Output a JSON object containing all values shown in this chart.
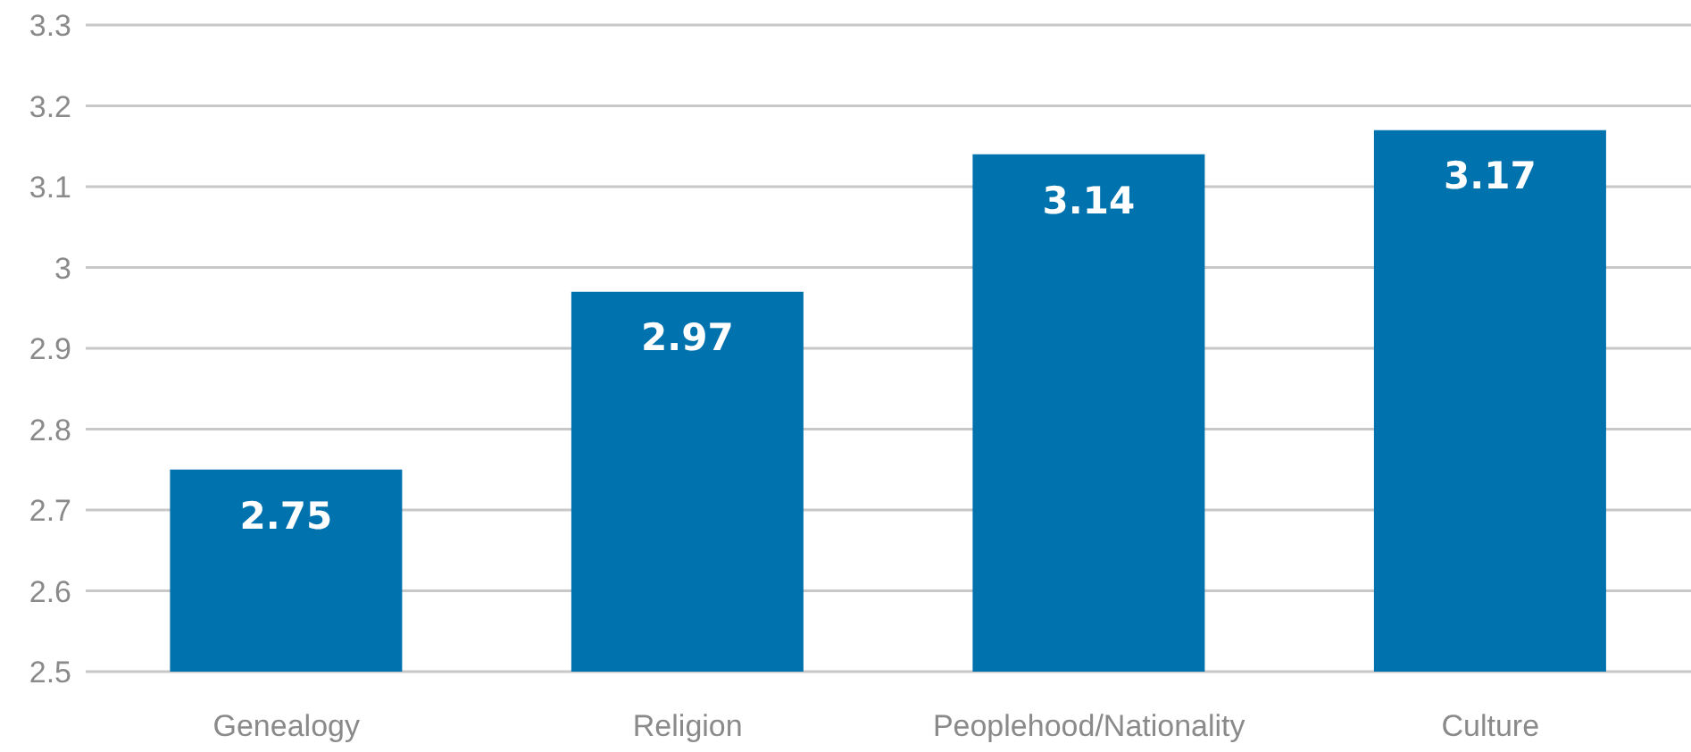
{
  "chart_data": {
    "type": "bar",
    "categories": [
      "Genealogy",
      "Religion",
      "Peoplehood/Nationality",
      "Culture"
    ],
    "values": [
      2.75,
      2.97,
      3.14,
      3.17
    ],
    "color": "#0072ae",
    "ylim": [
      2.5,
      3.3
    ],
    "yticks": [
      2.5,
      2.6,
      2.7,
      2.8,
      2.9,
      3,
      3.1,
      3.2,
      3.3
    ],
    "grid": "y",
    "data_labels": true
  }
}
